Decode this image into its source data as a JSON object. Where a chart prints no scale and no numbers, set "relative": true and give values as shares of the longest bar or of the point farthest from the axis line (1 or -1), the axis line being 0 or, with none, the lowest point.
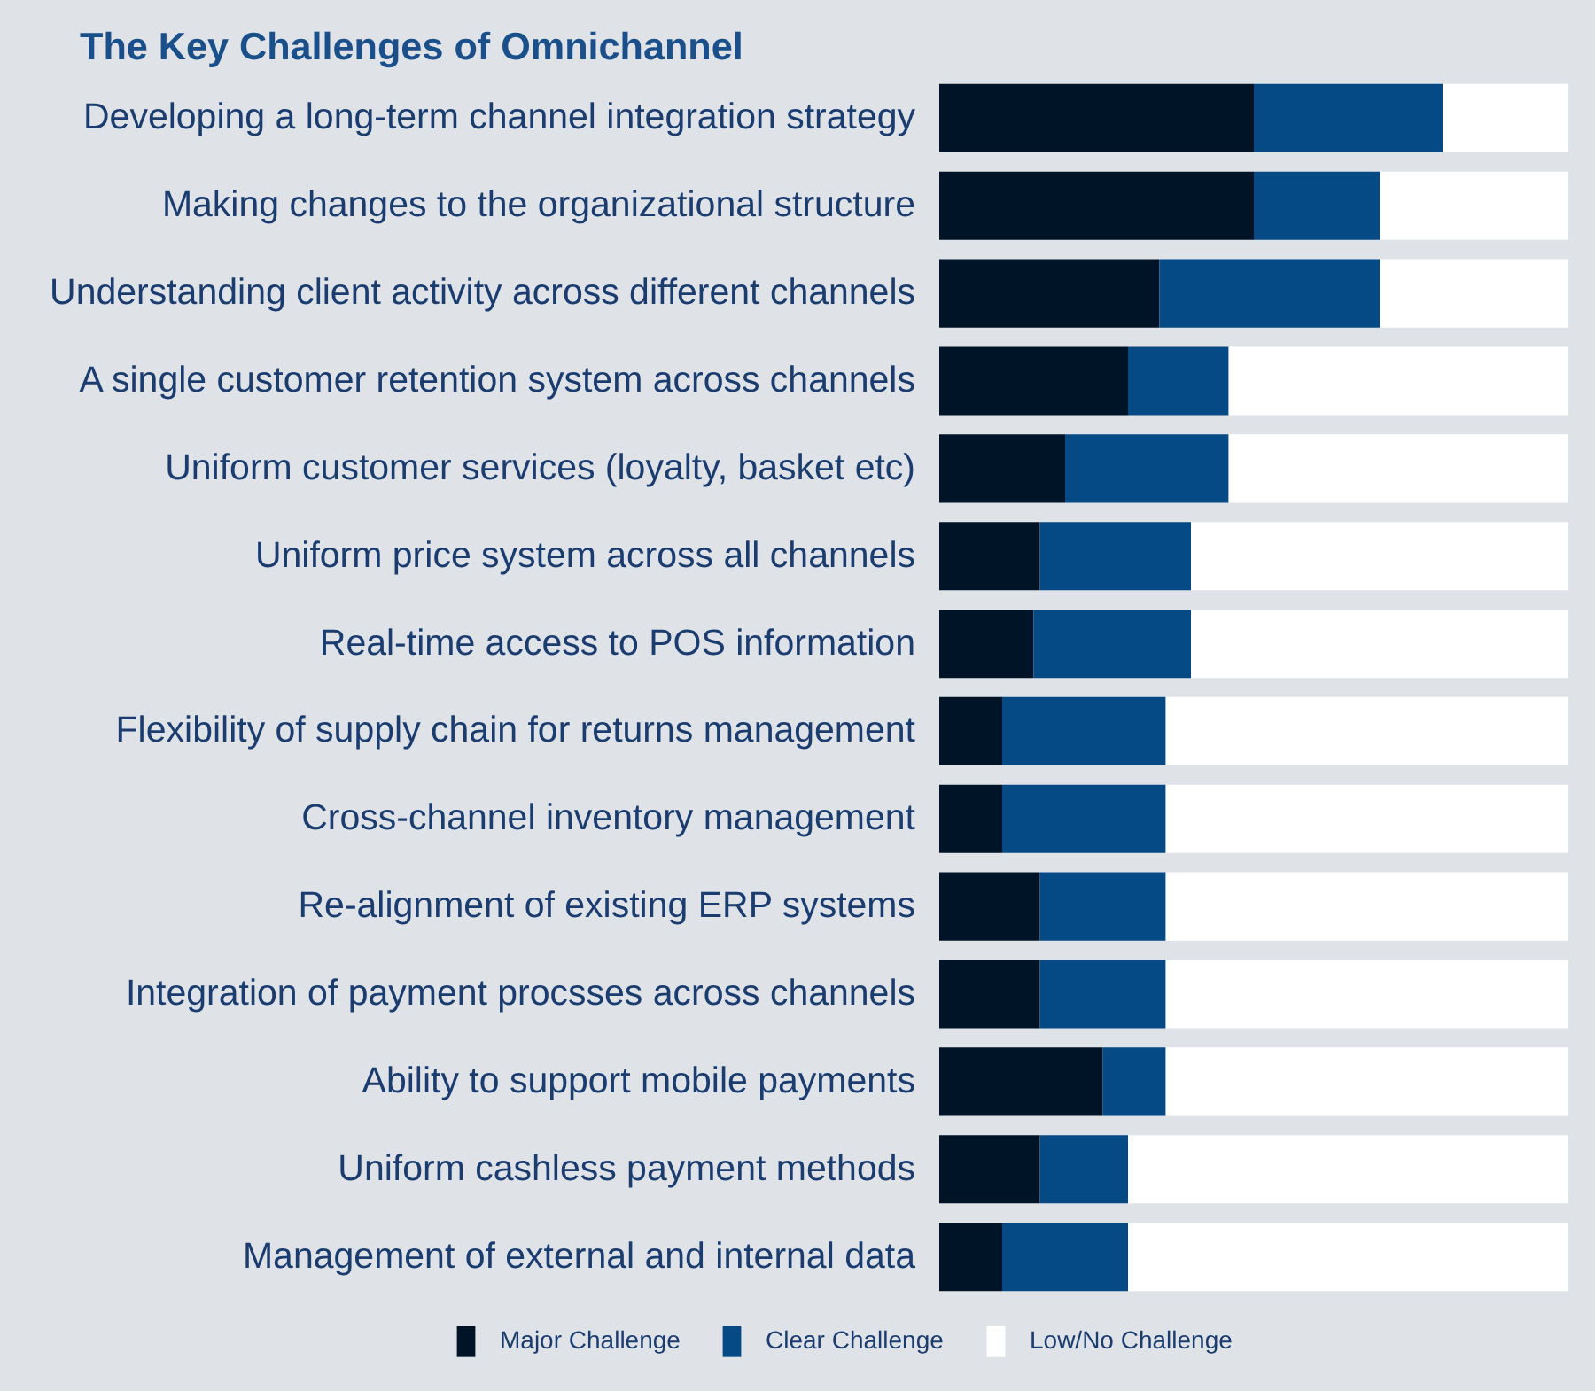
{
  "chart_data": {
    "type": "bar",
    "orientation": "horizontal",
    "stacked": true,
    "relative": true,
    "title": "The Key Challenges of Omnichannel",
    "legend": "bottom",
    "categories": [
      "Developing a long-term channel integration strategy",
      "Making changes to the organizational structure",
      "Understanding client activity across different channels",
      "A single customer retention system across channels",
      "Uniform customer services (loyalty, basket etc)",
      "Uniform price system across all channels",
      "Real-time access to POS information",
      "Flexibility of supply chain for returns management",
      "Cross-channel inventory management",
      "Re-alignment of existing ERP systems",
      "Integration of payment procsses across channels",
      "Ability to support mobile payments",
      "Uniform cashless payment methods",
      "Management of external and internal data"
    ],
    "series": [
      {
        "name": "Major Challenge",
        "color": "#001428",
        "values": [
          0.5,
          0.5,
          0.35,
          0.3,
          0.2,
          0.16,
          0.15,
          0.1,
          0.1,
          0.16,
          0.16,
          0.26,
          0.16,
          0.1
        ]
      },
      {
        "name": "Clear Challenge",
        "color": "#064a85",
        "values": [
          0.3,
          0.2,
          0.35,
          0.16,
          0.26,
          0.24,
          0.25,
          0.26,
          0.26,
          0.2,
          0.2,
          0.1,
          0.14,
          0.2
        ]
      },
      {
        "name": "Low/No Challenge",
        "color": "#ffffff",
        "values": [
          0.2,
          0.3,
          0.3,
          0.54,
          0.54,
          0.6,
          0.6,
          0.64,
          0.64,
          0.64,
          0.64,
          0.64,
          0.7,
          0.7
        ]
      }
    ]
  }
}
